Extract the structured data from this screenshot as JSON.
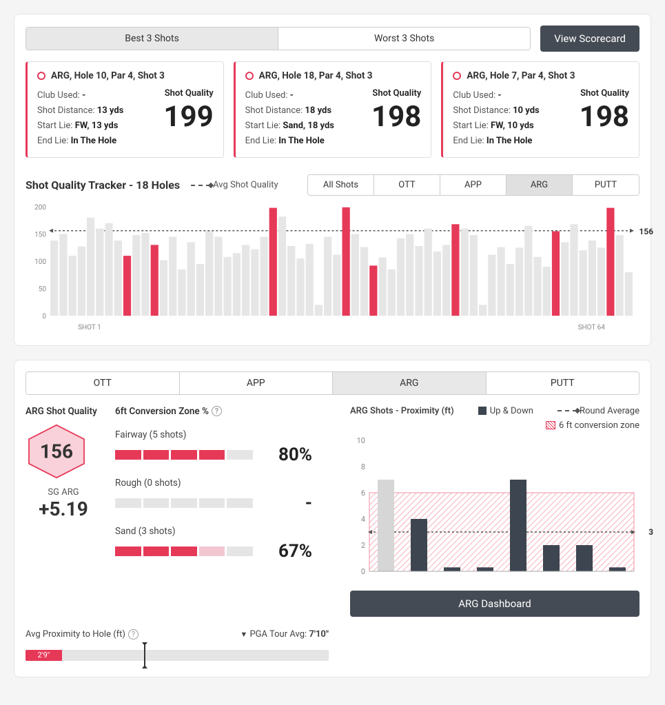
{
  "colors": {
    "accent": "#e63958",
    "darkBar": "#3d4550",
    "lightBar": "#e6e6e6",
    "axis": "#888",
    "grid": "#d5d5d5",
    "dash": "#555"
  },
  "topTabs": {
    "best": "Best 3 Shots",
    "worst": "Worst 3 Shots",
    "active": "best"
  },
  "viewScorecard": "View Scorecard",
  "shotCards": [
    {
      "title": "ARG, Hole 10, Par 4, Shot 3",
      "club": "-",
      "dist": "13 yds",
      "start": "FW, 13 yds",
      "end": "In The Hole",
      "qualityLabel": "Shot Quality",
      "quality": "199"
    },
    {
      "title": "ARG, Hole 18, Par 4, Shot 3",
      "club": "-",
      "dist": "18 yds",
      "start": "Sand, 18 yds",
      "end": "In The Hole",
      "qualityLabel": "Shot Quality",
      "quality": "198"
    },
    {
      "title": "ARG, Hole 7, Par 4, Shot 3",
      "club": "-",
      "dist": "10 yds",
      "start": "FW, 10 yds",
      "end": "In The Hole",
      "qualityLabel": "Shot Quality",
      "quality": "198"
    }
  ],
  "labels": {
    "clubUsed": "Club Used:",
    "shotDist": "Shot Distance:",
    "startLie": "Start Lie:",
    "endLie": "End Lie:"
  },
  "tracker": {
    "title": "Shot Quality Tracker - 18 Holes",
    "avgLabel": "Avg Shot Quality",
    "filters": [
      "All Shots",
      "OTT",
      "APP",
      "ARG",
      "PUTT"
    ],
    "activeFilter": "ARG",
    "ymax": 200,
    "ytick": 50,
    "avgValue": 156,
    "labelFirst": "SHOT 1",
    "labelLast": "SHOT 64",
    "bars": [
      {
        "v": 138,
        "h": 0
      },
      {
        "v": 150,
        "h": 0
      },
      {
        "v": 110,
        "h": 0
      },
      {
        "v": 127,
        "h": 0
      },
      {
        "v": 180,
        "h": 0
      },
      {
        "v": 160,
        "h": 0
      },
      {
        "v": 170,
        "h": 0
      },
      {
        "v": 138,
        "h": 0
      },
      {
        "v": 110,
        "h": 1
      },
      {
        "v": 148,
        "h": 0
      },
      {
        "v": 152,
        "h": 0
      },
      {
        "v": 130,
        "h": 1
      },
      {
        "v": 102,
        "h": 0
      },
      {
        "v": 145,
        "h": 0
      },
      {
        "v": 85,
        "h": 0
      },
      {
        "v": 135,
        "h": 0
      },
      {
        "v": 95,
        "h": 0
      },
      {
        "v": 155,
        "h": 0
      },
      {
        "v": 145,
        "h": 0
      },
      {
        "v": 108,
        "h": 0
      },
      {
        "v": 115,
        "h": 0
      },
      {
        "v": 130,
        "h": 0
      },
      {
        "v": 122,
        "h": 0
      },
      {
        "v": 145,
        "h": 0
      },
      {
        "v": 198,
        "h": 1
      },
      {
        "v": 182,
        "h": 0
      },
      {
        "v": 128,
        "h": 0
      },
      {
        "v": 105,
        "h": 0
      },
      {
        "v": 132,
        "h": 0
      },
      {
        "v": 20,
        "h": 0
      },
      {
        "v": 145,
        "h": 0
      },
      {
        "v": 112,
        "h": 0
      },
      {
        "v": 199,
        "h": 1
      },
      {
        "v": 150,
        "h": 0
      },
      {
        "v": 126,
        "h": 0
      },
      {
        "v": 92,
        "h": 1
      },
      {
        "v": 107,
        "h": 0
      },
      {
        "v": 85,
        "h": 0
      },
      {
        "v": 142,
        "h": 0
      },
      {
        "v": 150,
        "h": 0
      },
      {
        "v": 128,
        "h": 0
      },
      {
        "v": 160,
        "h": 0
      },
      {
        "v": 118,
        "h": 0
      },
      {
        "v": 130,
        "h": 0
      },
      {
        "v": 168,
        "h": 1
      },
      {
        "v": 160,
        "h": 0
      },
      {
        "v": 148,
        "h": 0
      },
      {
        "v": 20,
        "h": 0
      },
      {
        "v": 112,
        "h": 0
      },
      {
        "v": 126,
        "h": 0
      },
      {
        "v": 95,
        "h": 0
      },
      {
        "v": 125,
        "h": 0
      },
      {
        "v": 165,
        "h": 0
      },
      {
        "v": 108,
        "h": 0
      },
      {
        "v": 90,
        "h": 0
      },
      {
        "v": 155,
        "h": 1
      },
      {
        "v": 135,
        "h": 0
      },
      {
        "v": 168,
        "h": 0
      },
      {
        "v": 120,
        "h": 0
      },
      {
        "v": 138,
        "h": 0
      },
      {
        "v": 125,
        "h": 0
      },
      {
        "v": 198,
        "h": 1
      },
      {
        "v": 148,
        "h": 0
      },
      {
        "v": 80,
        "h": 0
      }
    ]
  },
  "lower": {
    "tabs": [
      "OTT",
      "APP",
      "ARG",
      "PUTT"
    ],
    "active": "ARG",
    "sqLabel": "ARG Shot Quality",
    "sqValue": "156",
    "sgLabel": "SG ARG",
    "sgValue": "+5.19",
    "convTitle": "6ft Conversion Zone %",
    "conversions": [
      {
        "label": "Fairway (5 shots)",
        "fill": 4,
        "segs": 5,
        "pct": "80%"
      },
      {
        "label": "Rough (0 shots)",
        "fill": 0,
        "segs": 5,
        "pct": "-"
      },
      {
        "label": "Sand (3 shots)",
        "fill": 3,
        "segs": 5,
        "ghost": 1,
        "pct": "67%"
      }
    ],
    "prox": {
      "title": "ARG Shots - Proximity (ft)",
      "legendUpDown": "Up & Down",
      "legendRoundAvg": "Round Average",
      "legendZone": "6 ft conversion zone",
      "ymax": 10,
      "ytick": 2,
      "zoneTop": 6,
      "avg": 3,
      "avgLabel": "3",
      "bars": [
        {
          "v": 7,
          "dark": false
        },
        {
          "v": 4,
          "dark": true
        },
        {
          "v": 0.3,
          "dark": true
        },
        {
          "v": 0.3,
          "dark": true
        },
        {
          "v": 7,
          "dark": true
        },
        {
          "v": 2,
          "dark": true
        },
        {
          "v": 2,
          "dark": true
        },
        {
          "v": 0.3,
          "dark": true
        }
      ]
    },
    "avgProxLabel": "Avg Proximity to Hole (ft)",
    "pgaLabel": "PGA Tour Avg:",
    "pgaValue": "7'10\"",
    "avgProxValue": "2'9\"",
    "avgProxFillPct": 12,
    "pgaMarkerPct": 39,
    "dashBtn": "ARG Dashboard"
  }
}
